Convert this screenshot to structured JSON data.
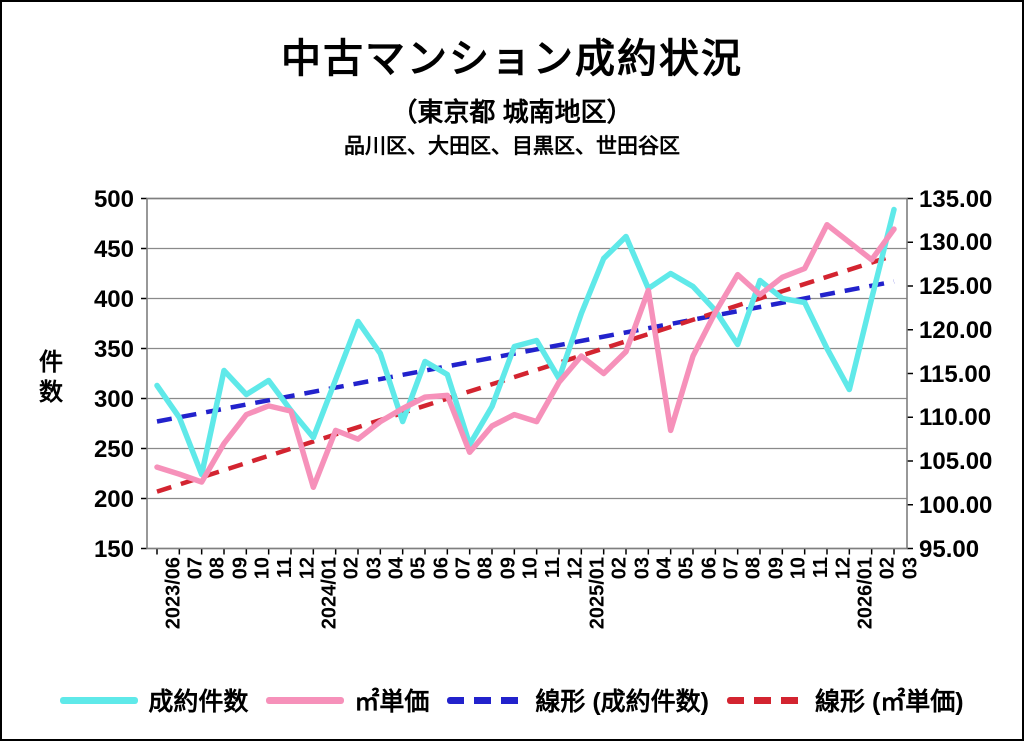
{
  "header": {
    "title": "中古マンション成約状況",
    "subtitle": "（東京都 城南地区）",
    "subsubtitle": "品川区、大田区、目黒区、世田谷区"
  },
  "chart_data": {
    "type": "line",
    "title": "中古マンション成約状況",
    "subtitle": "（東京都 城南地区）品川区、大田区、目黒区、世田谷区",
    "grid": true,
    "legend_position": "bottom",
    "categories": [
      "2023/06",
      "07",
      "08",
      "09",
      "10",
      "11",
      "12",
      "2024/01",
      "02",
      "03",
      "04",
      "05",
      "06",
      "07",
      "08",
      "09",
      "10",
      "11",
      "12",
      "2025/01",
      "02",
      "03",
      "04",
      "05",
      "06",
      "07",
      "08",
      "09",
      "10",
      "11",
      "12",
      "2026/01",
      "02",
      "03"
    ],
    "left_axis": {
      "title": "件数",
      "min": 150,
      "max": 500,
      "step": 50,
      "tick_labels": [
        "500",
        "450",
        "400",
        "350",
        "300",
        "250",
        "200",
        "150"
      ]
    },
    "right_axis": {
      "min": 95,
      "max": 135,
      "step": 5,
      "tick_labels": [
        "135.00",
        "130.00",
        "125.00",
        "120.00",
        "115.00",
        "110.00",
        "105.00",
        "100.00",
        "95.00"
      ]
    },
    "series": [
      {
        "key": "contract-count",
        "name": "成約件数",
        "axis": "left",
        "style": "solid",
        "color": "#5FE9E9",
        "values": [
          313,
          281,
          224,
          328,
          304,
          318,
          288,
          261,
          319,
          377,
          345,
          277,
          337,
          324,
          254,
          292,
          352,
          358,
          320,
          385,
          440,
          462,
          410,
          425,
          412,
          388,
          354,
          418,
          400,
          396,
          350,
          309,
          400,
          489
        ]
      },
      {
        "key": "unit-price",
        "name": "㎡単価",
        "axis": "right",
        "style": "solid",
        "color": "#F691BA",
        "values": [
          104.3,
          103.5,
          102.6,
          107,
          110.3,
          111.3,
          110.7,
          102,
          108.5,
          107.5,
          109.5,
          111,
          112.3,
          112.5,
          106,
          109,
          110.3,
          109.5,
          114,
          117,
          115,
          117.5,
          124.5,
          108.5,
          117,
          122,
          126.3,
          124,
          126,
          127,
          132,
          130,
          128,
          131.5
        ]
      },
      {
        "key": "trend-contract-count",
        "name": "線形 (成約件数)",
        "axis": "left",
        "style": "dashed",
        "color": "#2222CC",
        "trend_endpoints": [
          277,
          417
        ]
      },
      {
        "key": "trend-unit-price",
        "name": "線形 (㎡単価)",
        "axis": "right",
        "style": "dashed",
        "color": "#D32430",
        "trend_endpoints": [
          101.5,
          128.5
        ]
      }
    ]
  },
  "legend": {
    "items": [
      {
        "key": "contract-count",
        "label": "成約件数",
        "color": "#5FE9E9",
        "style": "solid"
      },
      {
        "key": "unit-price",
        "label": "㎡単価",
        "color": "#F691BA",
        "style": "solid"
      },
      {
        "key": "trend-contract-count",
        "label": "線形 (成約件数)",
        "color": "#2222CC",
        "style": "dashed"
      },
      {
        "key": "trend-unit-price",
        "label": "線形 (㎡単価)",
        "color": "#D32430",
        "style": "dashed"
      }
    ]
  },
  "colors": {
    "grid": "#8a8a8a",
    "spine": "#7f7f7f"
  }
}
